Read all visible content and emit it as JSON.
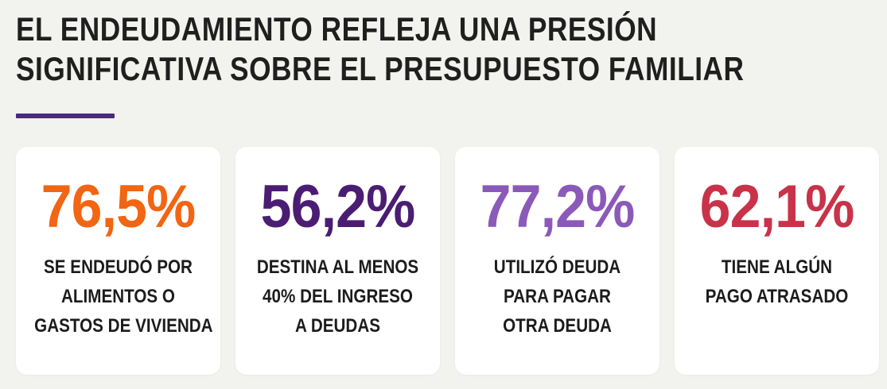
{
  "title": {
    "line1": "EL ENDEUDAMIENTO REFLEJA UNA PRESIÓN",
    "line2": "SIGNIFICATIVA SOBRE EL PRESUPUESTO FAMILIAR"
  },
  "colors": {
    "background": "#f2f2ee",
    "accent_rule": "#4b2a7a",
    "card_background": "#ffffff",
    "text_dark": "#1c1c1c"
  },
  "cards": [
    {
      "value": "76,5%",
      "color": "#f26513",
      "lines": [
        "SE ENDEUDÓ POR",
        "ALIMENTOS O",
        "GASTOS DE VIVIENDA"
      ]
    },
    {
      "value": "56,2%",
      "color": "#4a1d73",
      "lines": [
        "DESTINA AL MENOS",
        "40% DEL INGRESO",
        "A DEUDAS"
      ]
    },
    {
      "value": "77,2%",
      "color": "#8b5ab8",
      "lines": [
        "UTILIZÓ DEUDA",
        "PARA PAGAR",
        "OTRA DEUDA"
      ]
    },
    {
      "value": "62,1%",
      "color": "#c8334a",
      "lines": [
        "TIENE ALGÚN",
        "PAGO ATRASADO"
      ]
    }
  ]
}
